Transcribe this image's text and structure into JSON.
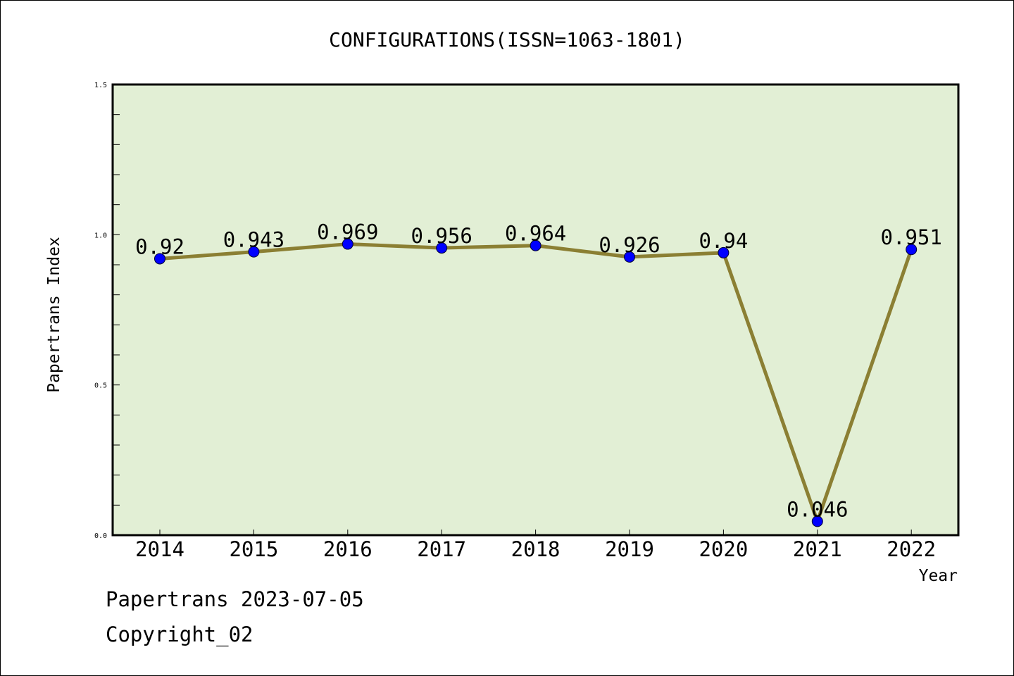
{
  "chart_data": {
    "type": "line",
    "title": "CONFIGURATIONS(ISSN=1063-1801)",
    "xlabel": "Year",
    "ylabel": "Papertrans Index",
    "categories": [
      "2014",
      "2015",
      "2016",
      "2017",
      "2018",
      "2019",
      "2020",
      "2021",
      "2022"
    ],
    "series": [
      {
        "values": [
          0.92,
          0.943,
          0.969,
          0.956,
          0.964,
          0.926,
          0.94,
          0.046,
          0.951
        ],
        "data_labels": [
          "0.92",
          "0.943",
          "0.969",
          "0.956",
          "0.964",
          "0.926",
          "0.94",
          "0.046",
          "0.951"
        ]
      }
    ],
    "ylim": [
      0.0,
      1.5
    ],
    "yticks": [
      {
        "value": 0.0,
        "label": "0.0"
      },
      {
        "value": 0.5,
        "label": "0.5"
      },
      {
        "value": 1.0,
        "label": "1.0"
      },
      {
        "value": 1.5,
        "label": "1.5"
      }
    ],
    "yminor_step": 0.1,
    "grid": false,
    "legend": "none",
    "colors": {
      "plot_background": "#e2efd5",
      "line": "#8b7f33",
      "marker": "#0000ff",
      "axis": "#000000"
    }
  },
  "footer": {
    "date_text": "Papertrans 2023-07-05",
    "copyright_text": "Copyright_02"
  }
}
